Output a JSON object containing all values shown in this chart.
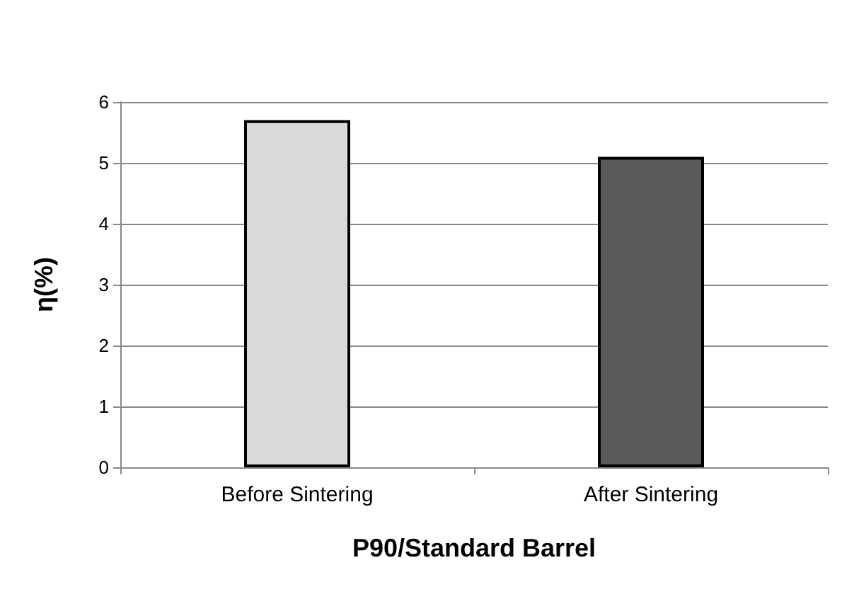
{
  "chart_data": {
    "type": "bar",
    "xlabel": "P90/Standard Barrel",
    "ylabel": "η(%)",
    "categories": [
      "Before Sintering",
      "After Sintering"
    ],
    "values": [
      5.7,
      5.1
    ],
    "colors": [
      "#d9d9d9",
      "#595959"
    ],
    "ylim": [
      0,
      6
    ],
    "yticks": [
      0,
      1,
      2,
      3,
      4,
      5,
      6
    ],
    "grid": "y"
  }
}
